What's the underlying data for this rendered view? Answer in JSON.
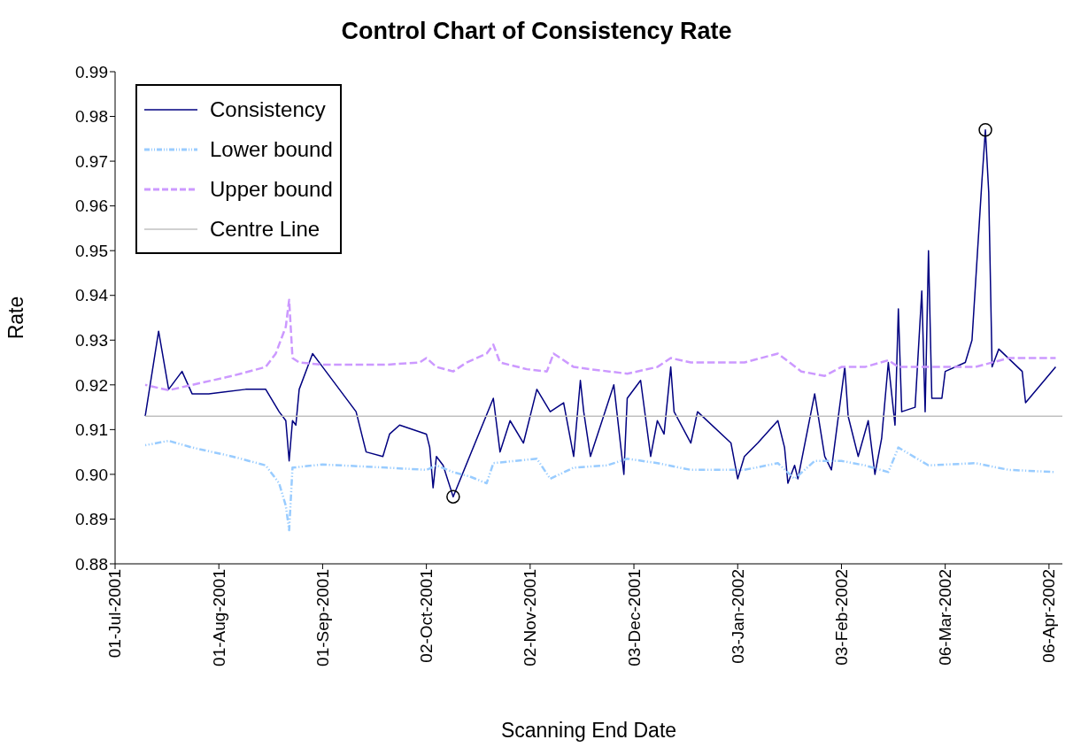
{
  "chart_data": {
    "type": "line",
    "title": "Control Chart of Consistency Rate",
    "xlabel": "Scanning End Date",
    "ylabel": "Rate",
    "xlim": [
      "2001-07-01",
      "2002-04-10"
    ],
    "xticks": [
      {
        "value": "2001-07-01",
        "label": "01-Jul-2001"
      },
      {
        "value": "2001-08-01",
        "label": "01-Aug-2001"
      },
      {
        "value": "2001-09-01",
        "label": "01-Sep-2001"
      },
      {
        "value": "2001-10-02",
        "label": "02-Oct-2001"
      },
      {
        "value": "2001-11-02",
        "label": "02-Nov-2001"
      },
      {
        "value": "2001-12-03",
        "label": "03-Dec-2001"
      },
      {
        "value": "2002-01-03",
        "label": "03-Jan-2002"
      },
      {
        "value": "2002-02-03",
        "label": "03-Feb-2002"
      },
      {
        "value": "2002-03-06",
        "label": "06-Mar-2002"
      },
      {
        "value": "2002-04-06",
        "label": "06-Apr-2002"
      }
    ],
    "ylim": [
      0.88,
      0.99
    ],
    "yticks": [
      0.88,
      0.89,
      {
        "value": 0.9,
        "label": "0.90"
      },
      0.91,
      0.92,
      0.93,
      0.94,
      0.95,
      0.96,
      0.97,
      0.98,
      0.99
    ],
    "grid": false,
    "legend": "top left",
    "series": [
      {
        "name": "Consistency",
        "color": "#000080",
        "line_style": "solid",
        "marker": "none",
        "x": [
          "2001-07-10",
          "2001-07-14",
          "2001-07-17",
          "2001-07-21",
          "2001-07-24",
          "2001-07-29",
          "2001-08-09",
          "2001-08-15",
          "2001-08-19",
          "2001-08-21",
          "2001-08-22",
          "2001-08-23",
          "2001-08-24",
          "2001-08-25",
          "2001-08-29",
          "2001-09-01",
          "2001-09-11",
          "2001-09-14",
          "2001-09-19",
          "2001-09-21",
          "2001-09-24",
          "2001-10-02",
          "2001-10-03",
          "2001-10-04",
          "2001-10-05",
          "2001-10-07",
          "2001-10-10",
          "2001-10-22",
          "2001-10-24",
          "2001-10-27",
          "2001-10-31",
          "2001-11-04",
          "2001-11-08",
          "2001-11-12",
          "2001-11-15",
          "2001-11-17",
          "2001-11-18",
          "2001-11-20",
          "2001-11-27",
          "2001-11-30",
          "2001-12-01",
          "2001-12-05",
          "2001-12-08",
          "2001-12-10",
          "2001-12-12",
          "2001-12-14",
          "2001-12-15",
          "2001-12-20",
          "2001-12-22",
          "2002-01-01",
          "2002-01-03",
          "2002-01-05",
          "2002-01-09",
          "2002-01-15",
          "2002-01-17",
          "2002-01-18",
          "2002-01-20",
          "2002-01-21",
          "2002-01-26",
          "2002-01-29",
          "2002-01-31",
          "2002-02-04",
          "2002-02-05",
          "2002-02-08",
          "2002-02-11",
          "2002-02-13",
          "2002-02-15",
          "2002-02-17",
          "2002-02-19",
          "2002-02-20",
          "2002-02-21",
          "2002-02-25",
          "2002-02-27",
          "2002-02-28",
          "2002-03-01",
          "2002-03-02",
          "2002-03-05",
          "2002-03-06",
          "2002-03-12",
          "2002-03-14",
          "2002-03-17",
          "2002-03-18",
          "2002-03-19",
          "2002-03-20",
          "2002-03-22",
          "2002-03-29",
          "2002-03-30",
          "2002-04-08"
        ],
        "values": [
          0.913,
          0.932,
          0.919,
          0.923,
          0.918,
          0.918,
          0.919,
          0.919,
          0.914,
          0.912,
          0.903,
          0.912,
          0.911,
          0.919,
          0.927,
          0.924,
          0.914,
          0.905,
          0.904,
          0.909,
          0.911,
          0.909,
          0.906,
          0.897,
          0.904,
          0.902,
          0.895,
          0.917,
          0.905,
          0.912,
          0.907,
          0.919,
          0.914,
          0.916,
          0.904,
          0.921,
          0.914,
          0.904,
          0.92,
          0.9,
          0.917,
          0.921,
          0.904,
          0.912,
          0.909,
          0.924,
          0.914,
          0.907,
          0.914,
          0.907,
          0.899,
          0.904,
          0.907,
          0.912,
          0.906,
          0.898,
          0.902,
          0.899,
          0.918,
          0.904,
          0.901,
          0.924,
          0.913,
          0.904,
          0.912,
          0.9,
          0.908,
          0.925,
          0.911,
          0.937,
          0.914,
          0.915,
          0.941,
          0.914,
          0.95,
          0.917,
          0.917,
          0.923,
          0.925,
          0.93,
          0.966,
          0.977,
          0.963,
          0.924,
          0.928,
          0.923,
          0.916,
          0.924
        ]
      },
      {
        "name": "Lower bound",
        "color": "#99ccff",
        "line_style": "dotted",
        "marker": "none",
        "x": [
          "2001-07-10",
          "2001-07-17",
          "2001-07-24",
          "2001-08-05",
          "2001-08-15",
          "2001-08-19",
          "2001-08-21",
          "2001-08-22",
          "2001-08-23",
          "2001-09-01",
          "2001-09-20",
          "2001-10-02",
          "2001-10-05",
          "2001-10-10",
          "2001-10-15",
          "2001-10-20",
          "2001-10-22",
          "2001-11-04",
          "2001-11-08",
          "2001-11-15",
          "2001-11-25",
          "2001-12-01",
          "2001-12-10",
          "2001-12-20",
          "2002-01-05",
          "2002-01-15",
          "2002-01-20",
          "2002-01-26",
          "2002-02-03",
          "2002-02-10",
          "2002-02-17",
          "2002-02-20",
          "2002-03-01",
          "2002-03-15",
          "2002-03-25",
          "2002-04-08"
        ],
        "values": [
          0.9065,
          0.9075,
          0.906,
          0.904,
          0.902,
          0.898,
          0.893,
          0.8875,
          0.9015,
          0.9022,
          0.9015,
          0.901,
          0.902,
          0.9005,
          0.8995,
          0.898,
          0.9025,
          0.9035,
          0.899,
          0.9015,
          0.902,
          0.9035,
          0.9025,
          0.901,
          0.901,
          0.9025,
          0.899,
          0.903,
          0.903,
          0.902,
          0.9005,
          0.906,
          0.902,
          0.9025,
          0.901,
          0.9005
        ]
      },
      {
        "name": "Upper bound",
        "color": "#cc99ff",
        "line_style": "dashed",
        "marker": "none",
        "x": [
          "2001-07-10",
          "2001-07-17",
          "2001-07-24",
          "2001-08-05",
          "2001-08-15",
          "2001-08-18",
          "2001-08-21",
          "2001-08-22",
          "2001-08-23",
          "2001-08-25",
          "2001-09-01",
          "2001-09-20",
          "2001-09-30",
          "2001-10-02",
          "2001-10-05",
          "2001-10-10",
          "2001-10-14",
          "2001-10-20",
          "2001-10-22",
          "2001-10-24",
          "2001-11-01",
          "2001-11-07",
          "2001-11-09",
          "2001-11-15",
          "2001-11-20",
          "2001-12-01",
          "2001-12-10",
          "2001-12-14",
          "2001-12-20",
          "2002-01-05",
          "2002-01-15",
          "2002-01-22",
          "2002-01-29",
          "2002-02-03",
          "2002-02-10",
          "2002-02-17",
          "2002-02-20",
          "2002-03-01",
          "2002-03-15",
          "2002-03-25",
          "2002-04-08"
        ],
        "values": [
          0.92,
          0.9188,
          0.92,
          0.922,
          0.924,
          0.927,
          0.933,
          0.939,
          0.926,
          0.925,
          0.9245,
          0.9245,
          0.925,
          0.926,
          0.924,
          0.923,
          0.925,
          0.927,
          0.929,
          0.925,
          0.9235,
          0.923,
          0.927,
          0.924,
          0.9235,
          0.9225,
          0.924,
          0.926,
          0.925,
          0.925,
          0.927,
          0.923,
          0.922,
          0.924,
          0.924,
          0.9255,
          0.924,
          0.924,
          0.924,
          0.926,
          0.926
        ]
      },
      {
        "name": "Centre Line",
        "color": "#c0c0c0",
        "line_style": "solid",
        "marker": "none",
        "x": [
          "2001-07-10",
          "2002-04-10"
        ],
        "values": [
          0.913,
          0.913
        ]
      },
      {
        "type": "scatter",
        "color": "#000000",
        "marker": "circle",
        "x": [
          "2001-10-10",
          "2002-03-18"
        ],
        "values": [
          0.895,
          0.977
        ]
      }
    ]
  }
}
